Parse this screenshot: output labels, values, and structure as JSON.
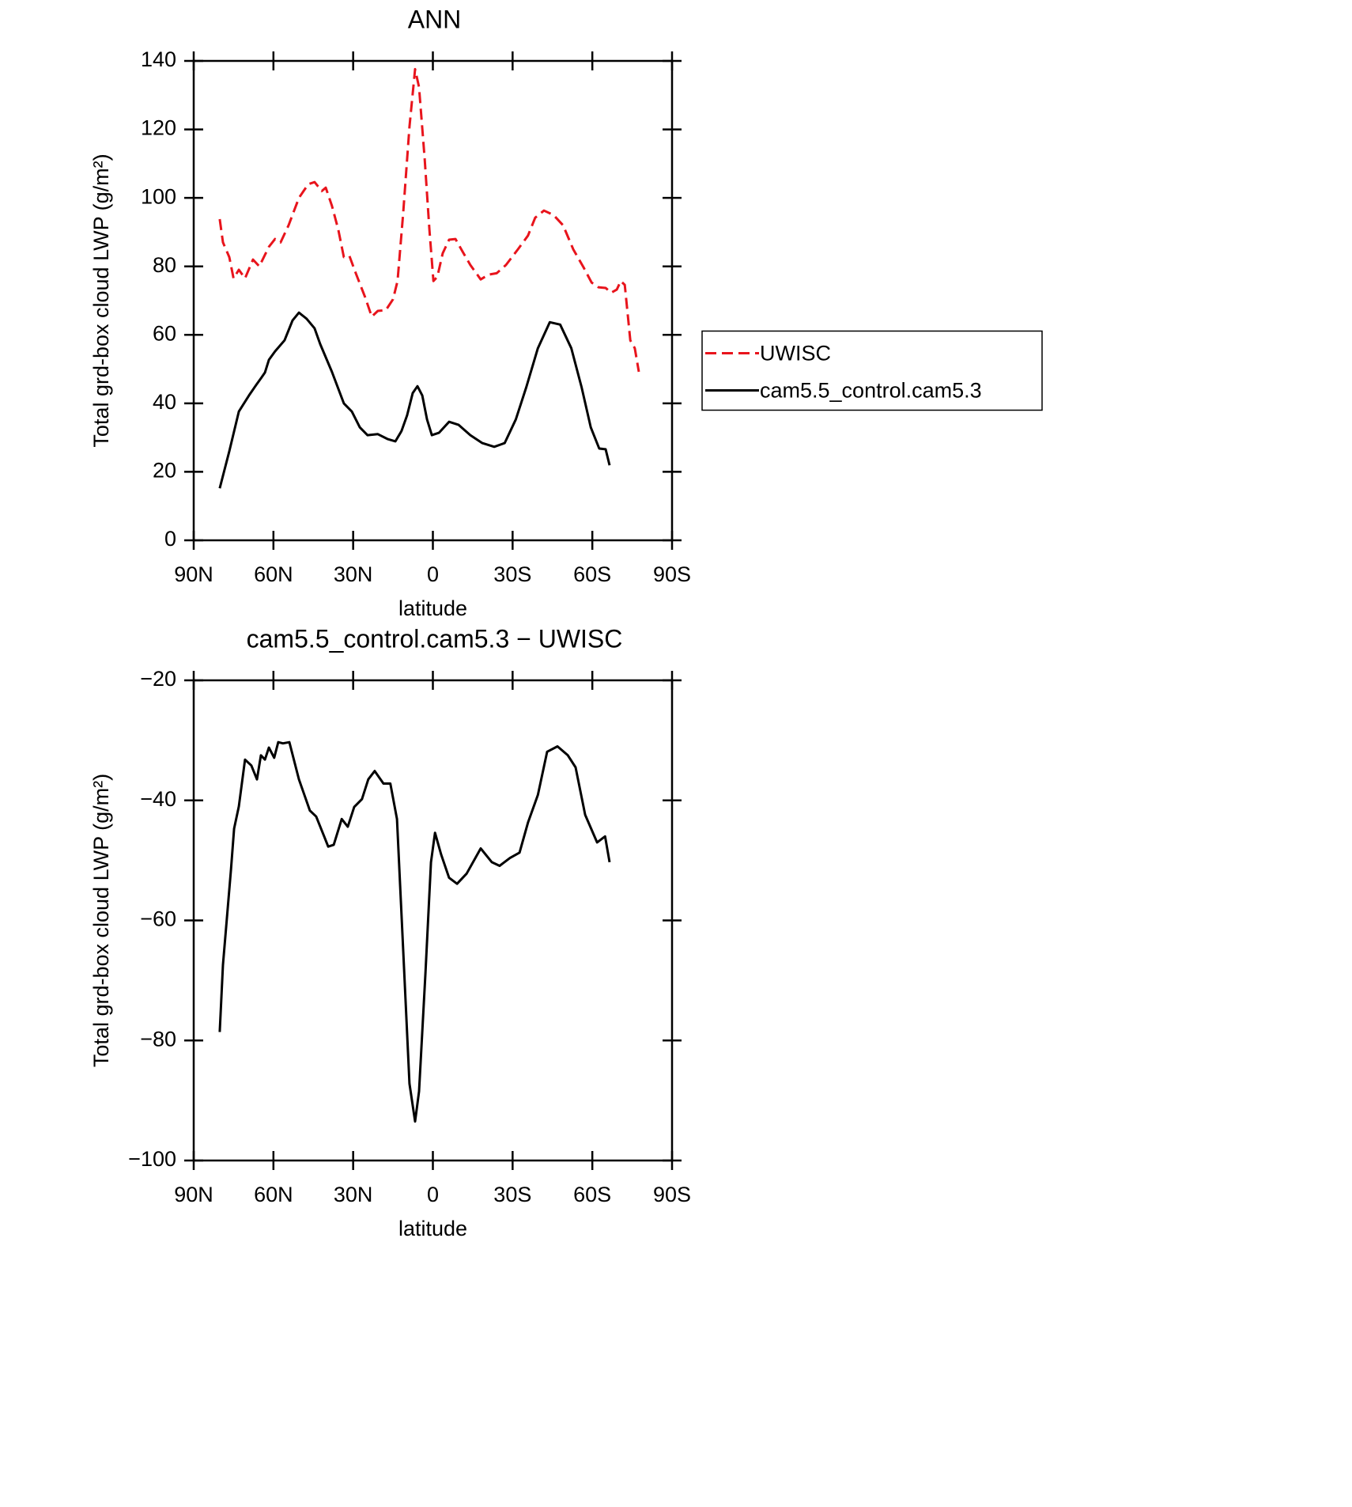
{
  "chart_data": [
    {
      "type": "line",
      "title": "ANN",
      "xlabel": "latitude",
      "ylabel": "Total grd-box cloud LWP (g/m²)",
      "xlim": [
        90,
        -90
      ],
      "xticks": [
        {
          "value": 90,
          "label": "90N"
        },
        {
          "value": 60,
          "label": "60N"
        },
        {
          "value": 30,
          "label": "30N"
        },
        0,
        {
          "value": -30,
          "label": "30S"
        },
        {
          "value": -60,
          "label": "60S"
        },
        {
          "value": -90,
          "label": "90S"
        }
      ],
      "ylim": [
        0,
        140
      ],
      "yticks": [
        0,
        20,
        40,
        60,
        80,
        100,
        120,
        140
      ],
      "legend": "right",
      "series": [
        {
          "name": "UWISC",
          "color": "#e8141c",
          "linestyle": "dashed",
          "x": [
            80.2,
            79,
            76.6,
            75,
            73,
            70.7,
            67.7,
            65.3,
            61.7,
            59.4,
            57.3,
            54.3,
            50.4,
            46.9,
            44.5,
            41.8,
            40.3,
            38,
            35.6,
            33.5,
            31.4,
            29,
            25.5,
            23,
            20.7,
            17.7,
            15,
            13.3,
            11.2,
            8.8,
            6.7,
            5.2,
            3.1,
            1.3,
            -0.2,
            -1.7,
            -3.7,
            -6.1,
            -8.5,
            -11.2,
            -14.1,
            -18,
            -21,
            -24,
            -27.5,
            -32,
            -35.8,
            -38.5,
            -41.8,
            -45.4,
            -49,
            -52.8,
            -56.7,
            -59.7,
            -62.3,
            -65,
            -67.1,
            -69.2,
            -70.7,
            -72.2,
            -74.3,
            -76,
            -77.5
          ],
          "values": [
            93.8,
            87,
            82.7,
            76.5,
            79,
            76.5,
            82,
            80,
            85.7,
            88,
            87,
            92,
            100,
            104,
            104.6,
            102,
            103,
            97.7,
            90.8,
            82.7,
            83,
            78,
            71,
            65.3,
            67,
            67.2,
            70.4,
            75.7,
            95.4,
            120.8,
            137.6,
            132.3,
            111.5,
            90.8,
            75.7,
            77,
            83.8,
            87.8,
            88,
            84.3,
            80.4,
            76.2,
            77.6,
            78,
            80.4,
            85,
            89,
            94.2,
            96.3,
            95,
            92,
            85,
            79.7,
            75.3,
            73.9,
            73.7,
            72.3,
            73.2,
            75.7,
            74.6,
            58.4,
            56.1,
            49.2
          ]
        },
        {
          "name": "cam5.5_control.cam5.3",
          "color": "#000000",
          "linestyle": "solid",
          "x": [
            80.2,
            76.6,
            73,
            69.2,
            66.2,
            64.7,
            63.2,
            61.7,
            59.4,
            55.8,
            52.8,
            50.4,
            47.5,
            44.5,
            42.4,
            38,
            33.5,
            30.5,
            27.5,
            24.6,
            20.7,
            17.1,
            14.1,
            11.8,
            9.7,
            7.6,
            5.8,
            4,
            2.2,
            0.4,
            -2.3,
            -6.1,
            -9.7,
            -14.1,
            -18.6,
            -23.1,
            -27,
            -31.2,
            -35.1,
            -39.5,
            -44,
            -47.9,
            -52.1,
            -56,
            -59.4,
            -62.6,
            -65,
            -66.5
          ],
          "values": [
            15.2,
            26,
            37.6,
            42.3,
            45.7,
            47.3,
            49,
            52.7,
            55.2,
            58.4,
            64.2,
            66.5,
            64.7,
            61.9,
            57.3,
            49.2,
            40,
            37.6,
            33,
            30.7,
            31,
            29.6,
            28.9,
            31.9,
            36.5,
            43,
            45,
            42.3,
            35.3,
            30.7,
            31.4,
            34.6,
            33.7,
            30.7,
            28.4,
            27.3,
            28.4,
            35.3,
            44.6,
            56.1,
            63.7,
            63,
            56.1,
            44.6,
            33,
            26.8,
            26.6,
            21.9
          ]
        }
      ]
    },
    {
      "type": "line",
      "title": "cam5.5_control.cam5.3 − UWISC",
      "xlabel": "latitude",
      "ylabel": "Total grd-box cloud LWP (g/m²)",
      "xlim": [
        90,
        -90
      ],
      "xticks": [
        {
          "value": 90,
          "label": "90N"
        },
        {
          "value": 60,
          "label": "60N"
        },
        {
          "value": 30,
          "label": "30N"
        },
        0,
        {
          "value": -30,
          "label": "30S"
        },
        {
          "value": -60,
          "label": "60S"
        },
        {
          "value": -90,
          "label": "90S"
        }
      ],
      "ylim": [
        -100,
        -20
      ],
      "yticks": [
        {
          "value": -100,
          "label": "−100"
        },
        {
          "value": -80,
          "label": "−80"
        },
        {
          "value": -60,
          "label": "−60"
        },
        {
          "value": -40,
          "label": "−40"
        },
        {
          "value": -20,
          "label": "−20"
        }
      ],
      "series": [
        {
          "color": "#000000",
          "linestyle": "solid",
          "x": [
            80.2,
            79,
            76,
            74.8,
            73,
            70.7,
            68.3,
            66.2,
            64.7,
            63.2,
            61.7,
            59.7,
            58.2,
            56.4,
            54,
            50.4,
            46.3,
            43.9,
            40.9,
            39.4,
            37.3,
            34.3,
            32,
            29.6,
            26.7,
            24.3,
            21.9,
            18.6,
            16,
            13.5,
            11.2,
            8.8,
            6.7,
            5.2,
            2.8,
            0.7,
            -0.8,
            -3.1,
            -6.1,
            -9.1,
            -12.7,
            -18,
            -22.2,
            -25.1,
            -29,
            -32.6,
            -35.8,
            -39.5,
            -43,
            -46.9,
            -50.8,
            -53.7,
            -57.3,
            -61.8,
            -64.8,
            -66.5
          ],
          "values": [
            -78.6,
            -67.4,
            -51.6,
            -44.7,
            -41,
            -33.2,
            -34.2,
            -36.5,
            -32.5,
            -33.2,
            -31.2,
            -32.9,
            -30.3,
            -30.5,
            -30.3,
            -36.5,
            -41.7,
            -42.7,
            -46,
            -47.7,
            -47.4,
            -43.1,
            -44.4,
            -41.1,
            -39.8,
            -36.5,
            -35.1,
            -37.2,
            -37.2,
            -43.1,
            -64.8,
            -87.2,
            -93.5,
            -88.5,
            -68.8,
            -50.3,
            -45.4,
            -49,
            -52.9,
            -53.9,
            -52.2,
            -48,
            -50.3,
            -50.9,
            -49.6,
            -48.7,
            -43.7,
            -39.1,
            -31.9,
            -31,
            -32.5,
            -34.5,
            -42.4,
            -47,
            -46,
            -50.3
          ]
        }
      ]
    }
  ]
}
